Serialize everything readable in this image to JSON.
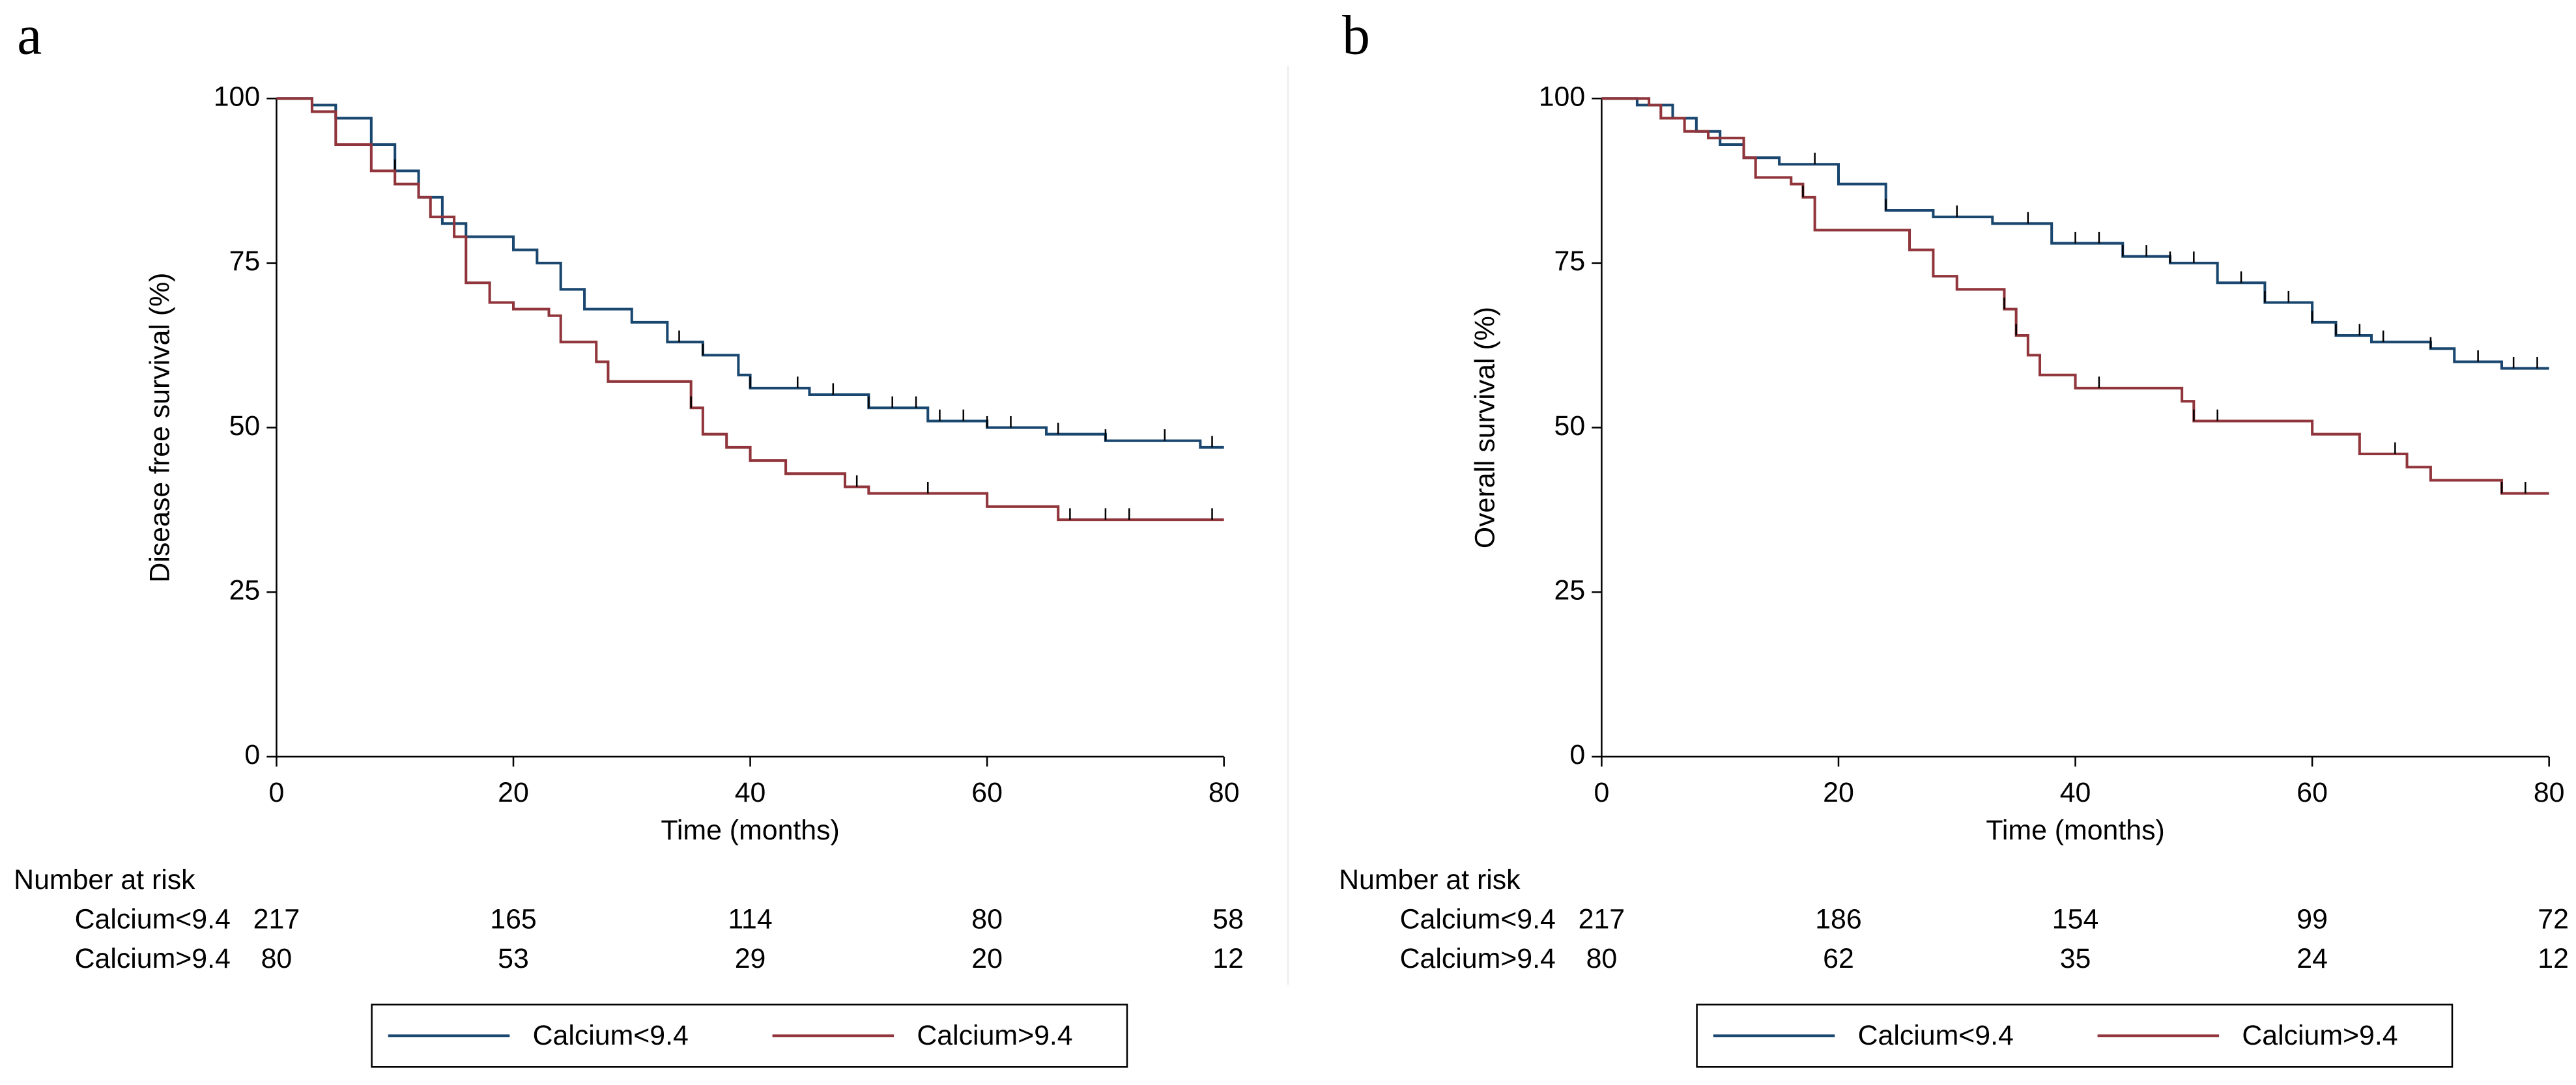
{
  "chart_data": [
    {
      "type": "km",
      "panel": "a",
      "ylabel": "Disease free survival (%)",
      "xlabel": "Time (months)",
      "xlim": [
        0,
        80
      ],
      "ylim": [
        0,
        100
      ],
      "xticks": [
        0,
        20,
        40,
        60,
        80
      ],
      "yticks": [
        0,
        25,
        50,
        75,
        100
      ],
      "series": [
        {
          "name": "Calcium<9.4",
          "color": "#1a476f",
          "x": [
            0,
            3,
            5,
            8,
            10,
            12,
            14,
            16,
            20,
            22,
            24,
            26,
            30,
            33,
            36,
            39,
            40,
            45,
            50,
            55,
            60,
            65,
            70,
            75,
            78,
            80
          ],
          "y": [
            100,
            99,
            97,
            93,
            89,
            85,
            81,
            79,
            77,
            75,
            71,
            68,
            66,
            63,
            61,
            58,
            56,
            55,
            53,
            51,
            50,
            49,
            48,
            48,
            47,
            47
          ],
          "censored": [
            10,
            34,
            36,
            40,
            44,
            47,
            50,
            52,
            54,
            56,
            58,
            60,
            62,
            66,
            70,
            75,
            79
          ]
        },
        {
          "name": "Calcium>9.4",
          "color": "#90353b",
          "x": [
            0,
            3,
            5,
            8,
            10,
            12,
            13,
            15,
            16,
            18,
            20,
            23,
            24,
            27,
            28,
            34,
            35,
            36,
            38,
            40,
            43,
            48,
            50,
            60,
            66,
            80
          ],
          "y": [
            100,
            98,
            93,
            89,
            87,
            85,
            82,
            79,
            72,
            69,
            68,
            67,
            63,
            60,
            57,
            57,
            53,
            49,
            47,
            45,
            43,
            41,
            40,
            38,
            36,
            36
          ],
          "censored": [
            35,
            49,
            55,
            67,
            70,
            72,
            79
          ]
        }
      ],
      "risk_table": {
        "title": "Number at risk",
        "rows": [
          {
            "label": "Calcium<9.4",
            "values": [
              217,
              165,
              114,
              80,
              58
            ]
          },
          {
            "label": "Calcium>9.4",
            "values": [
              80,
              53,
              29,
              20,
              12
            ]
          }
        ]
      }
    },
    {
      "type": "km",
      "panel": "b",
      "ylabel": "Overall survival (%)",
      "xlabel": "Time (months)",
      "xlim": [
        0,
        80
      ],
      "ylim": [
        0,
        100
      ],
      "xticks": [
        0,
        20,
        40,
        60,
        80
      ],
      "yticks": [
        0,
        25,
        50,
        75,
        100
      ],
      "series": [
        {
          "name": "Calcium<9.4",
          "color": "#1a476f",
          "x": [
            0,
            3,
            6,
            8,
            10,
            12,
            15,
            20,
            24,
            28,
            33,
            38,
            44,
            48,
            52,
            56,
            60,
            62,
            65,
            70,
            72,
            76,
            80
          ],
          "y": [
            100,
            99,
            97,
            95,
            93,
            91,
            90,
            87,
            83,
            82,
            81,
            78,
            76,
            75,
            72,
            69,
            66,
            64,
            63,
            62,
            60,
            59,
            59
          ],
          "censored": [
            18,
            24,
            30,
            36,
            40,
            42,
            44,
            46,
            48,
            50,
            54,
            56,
            58,
            60,
            62,
            64,
            66,
            70,
            74,
            77,
            79
          ]
        },
        {
          "name": "Calcium>9.4",
          "color": "#90353b",
          "x": [
            0,
            4,
            5,
            7,
            9,
            12,
            13,
            16,
            17,
            18,
            25,
            26,
            28,
            30,
            33,
            34,
            35,
            36,
            37,
            40,
            44,
            49,
            50,
            60,
            64,
            68,
            70,
            76,
            80
          ],
          "y": [
            100,
            99,
            97,
            95,
            94,
            91,
            88,
            87,
            85,
            80,
            80,
            77,
            73,
            71,
            71,
            68,
            64,
            61,
            58,
            56,
            56,
            54,
            51,
            49,
            46,
            44,
            42,
            40,
            40
          ],
          "censored": [
            17,
            34,
            35,
            42,
            50,
            52,
            67,
            76,
            78
          ]
        }
      ],
      "risk_table": {
        "title": "Number at risk",
        "rows": [
          {
            "label": "Calcium<9.4",
            "values": [
              217,
              186,
              154,
              99,
              72
            ]
          },
          {
            "label": "Calcium>9.4",
            "values": [
              80,
              62,
              35,
              24,
              12
            ]
          }
        ]
      }
    }
  ]
}
